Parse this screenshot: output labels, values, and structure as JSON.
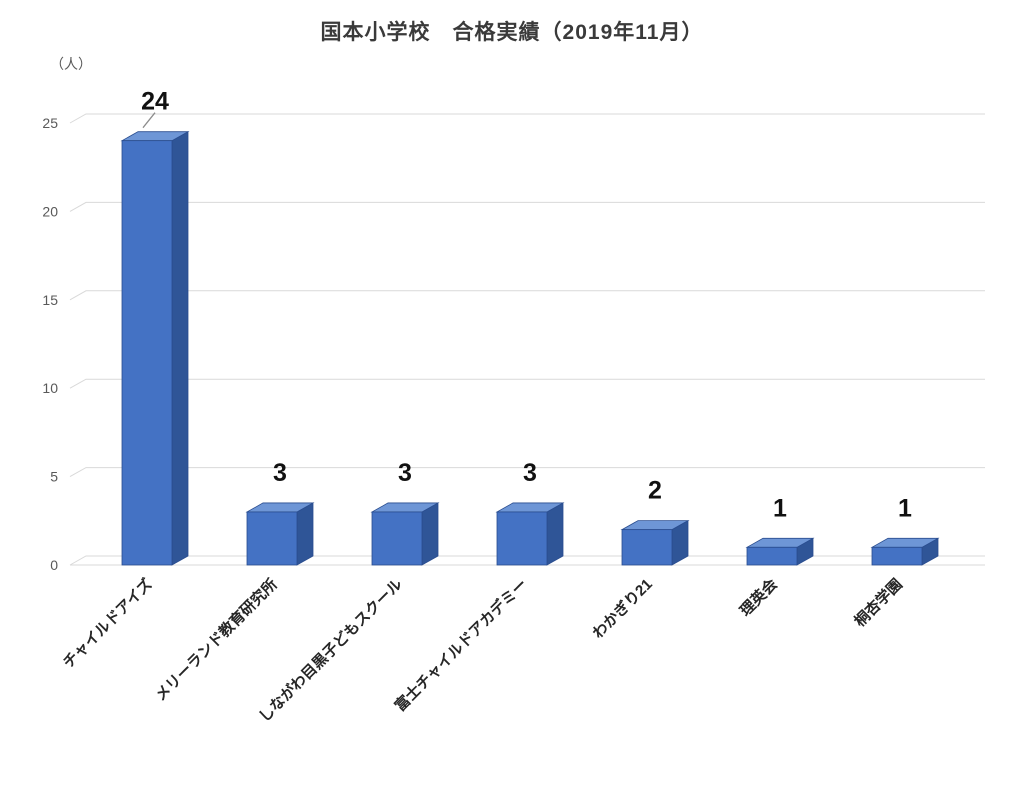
{
  "chart_data": {
    "type": "bar",
    "title": "国本小学校　合格実績（2019年11月）",
    "xlabel": "",
    "ylabel": "（人）",
    "categories": [
      "チャイルドアイズ",
      "メリーランド教育研究所",
      "しながわ目黒子どもスクール",
      "富士チャイルドアカデミー",
      "わかぎり21",
      "理英会",
      "桐杏学園"
    ],
    "values": [
      24,
      3,
      3,
      3,
      2,
      1,
      1
    ],
    "value_labels": [
      "24",
      "3",
      "3",
      "3",
      "2",
      "1",
      "1"
    ],
    "ylim": [
      0,
      25
    ],
    "yticks": [
      0,
      5,
      10,
      15,
      20,
      25
    ],
    "grid": true,
    "legend": false,
    "style": "3d-column",
    "colors": {
      "bar_front": "#4472C4",
      "bar_top": "#6E96D6",
      "bar_side": "#2F5597",
      "bar_outline": "#2A4D8F",
      "gridline": "#D9D9D9",
      "tick_text": "#595959",
      "title_text": "#3A3A3A",
      "value_label": "#111111",
      "category_text": "#262626",
      "leader_line": "#8C8C8C",
      "background": "#FFFFFF"
    }
  }
}
